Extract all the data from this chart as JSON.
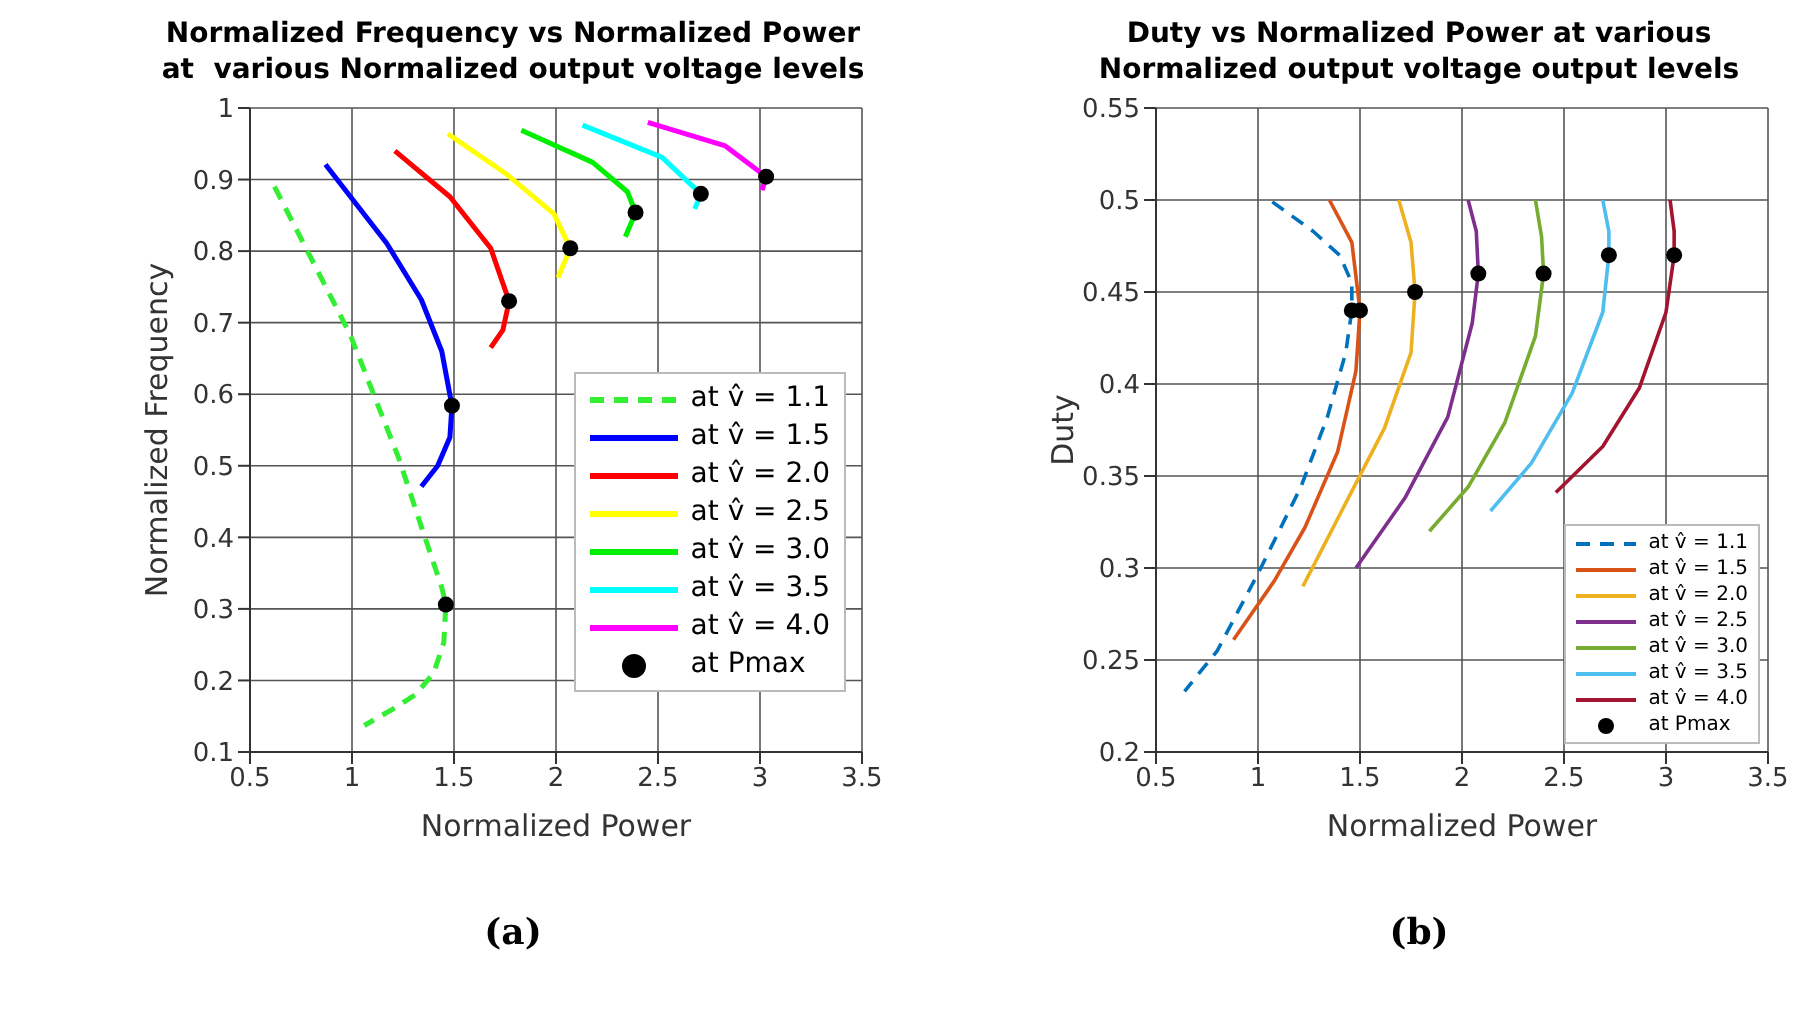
{
  "chart_data": [
    {
      "type": "line",
      "title": "Normalized Frequency vs Normalized Power\nat  various Normalized output voltage levels",
      "xlabel": "Normalized Power",
      "ylabel": "Normalized Frequency",
      "xlim": [
        0.5,
        3.5
      ],
      "xticks": [
        0.5,
        1,
        1.5,
        2,
        2.5,
        3,
        3.5
      ],
      "ylim": [
        0.1,
        1
      ],
      "yticks": [
        0.1,
        0.2,
        0.3,
        0.4,
        0.5,
        0.6,
        0.7,
        0.8,
        0.9,
        1
      ],
      "grid": true,
      "legend": "right",
      "annotations": [
        "(a)"
      ],
      "series": [
        {
          "name": "at v̂ = 1.1",
          "color": "#33ee33",
          "line_style": "dashed",
          "x": [
            0.62,
            0.99,
            1.23,
            1.34,
            1.44,
            1.46,
            1.45,
            1.4,
            1.31,
            1.2,
            1.06
          ],
          "values": [
            0.89,
            0.684,
            0.51,
            0.415,
            0.33,
            0.306,
            0.253,
            0.21,
            0.18,
            0.16,
            0.137
          ]
        },
        {
          "name": "at v̂ = 1.5",
          "color": "#0000ff",
          "x": [
            0.87,
            1.17,
            1.34,
            1.44,
            1.49,
            1.48,
            1.42,
            1.34
          ],
          "values": [
            0.921,
            0.811,
            0.732,
            0.66,
            0.584,
            0.54,
            0.5,
            0.471
          ]
        },
        {
          "name": "at v̂ = 2.0",
          "color": "#ff0000",
          "x": [
            1.21,
            1.48,
            1.68,
            1.77,
            1.74,
            1.68
          ],
          "values": [
            0.94,
            0.876,
            0.804,
            0.73,
            0.69,
            0.665
          ]
        },
        {
          "name": "at v̂ = 2.5",
          "color": "#ffff00",
          "x": [
            1.47,
            1.76,
            1.99,
            2.07,
            2.01
          ],
          "values": [
            0.964,
            0.907,
            0.852,
            0.804,
            0.763
          ]
        },
        {
          "name": "at v̂ = 3.0",
          "color": "#00ee00",
          "x": [
            1.83,
            2.18,
            2.35,
            2.39,
            2.34
          ],
          "values": [
            0.969,
            0.924,
            0.883,
            0.854,
            0.82
          ]
        },
        {
          "name": "at v̂ = 3.5",
          "color": "#00ffff",
          "x": [
            2.13,
            2.52,
            2.71,
            2.68
          ],
          "values": [
            0.976,
            0.931,
            0.88,
            0.859
          ]
        },
        {
          "name": "at v̂ = 4.0",
          "color": "#ff00ff",
          "x": [
            2.45,
            2.83,
            3.03,
            3.01
          ],
          "values": [
            0.98,
            0.947,
            0.904,
            0.885
          ]
        },
        {
          "name": "at Pmax",
          "type": "scatter",
          "color": "#000000",
          "marker": "circle",
          "x": [
            1.46,
            1.49,
            1.77,
            2.07,
            2.39,
            2.71,
            3.03
          ],
          "values": [
            0.306,
            0.584,
            0.73,
            0.804,
            0.854,
            0.88,
            0.904
          ]
        }
      ]
    },
    {
      "type": "line",
      "title": "Duty vs Normalized Power at various\nNormalized output voltage output levels",
      "xlabel": "Normalized Power",
      "ylabel": "Duty",
      "xlim": [
        0.5,
        3.5
      ],
      "xticks": [
        0.5,
        1,
        1.5,
        2,
        2.5,
        3,
        3.5
      ],
      "ylim": [
        0.2,
        0.55
      ],
      "yticks": [
        0.2,
        0.25,
        0.3,
        0.35,
        0.4,
        0.45,
        0.5,
        0.55
      ],
      "grid": true,
      "legend": "bottom right",
      "annotations": [
        "(b)"
      ],
      "series": [
        {
          "name": "at v̂ = 1.1",
          "color": "#0072bd",
          "line_style": "dashed",
          "x": [
            1.07,
            1.27,
            1.4,
            1.46,
            1.46,
            1.43,
            1.34,
            1.21,
            1.0,
            0.8,
            0.64
          ],
          "values": [
            0.499,
            0.483,
            0.47,
            0.455,
            0.44,
            0.417,
            0.382,
            0.344,
            0.297,
            0.255,
            0.233
          ]
        },
        {
          "name": "at v̂ = 1.5",
          "color": "#d95319",
          "x": [
            1.35,
            1.46,
            1.5,
            1.48,
            1.39,
            1.23,
            1.08,
            0.88
          ],
          "values": [
            0.5,
            0.477,
            0.44,
            0.407,
            0.363,
            0.322,
            0.293,
            0.261
          ]
        },
        {
          "name": "at v̂ = 2.0",
          "color": "#edb120",
          "x": [
            1.69,
            1.75,
            1.77,
            1.75,
            1.62,
            1.41,
            1.22
          ],
          "values": [
            0.5,
            0.477,
            0.45,
            0.417,
            0.376,
            0.331,
            0.29
          ]
        },
        {
          "name": "at v̂ = 2.5",
          "color": "#7e2f8e",
          "x": [
            2.03,
            2.07,
            2.08,
            2.05,
            1.93,
            1.72,
            1.48
          ],
          "values": [
            0.5,
            0.483,
            0.46,
            0.433,
            0.382,
            0.338,
            0.3
          ]
        },
        {
          "name": "at v̂ = 3.0",
          "color": "#77ac30",
          "x": [
            2.36,
            2.39,
            2.4,
            2.36,
            2.21,
            2.03,
            1.84
          ],
          "values": [
            0.5,
            0.48,
            0.46,
            0.426,
            0.379,
            0.344,
            0.32
          ]
        },
        {
          "name": "at v̂ = 3.5",
          "color": "#4dbeee",
          "x": [
            2.69,
            2.72,
            2.72,
            2.69,
            2.54,
            2.34,
            2.14
          ],
          "values": [
            0.5,
            0.483,
            0.47,
            0.439,
            0.395,
            0.357,
            0.331
          ]
        },
        {
          "name": "at v̂ = 4.0",
          "color": "#a2142f",
          "x": [
            3.02,
            3.04,
            3.04,
            3.0,
            2.87,
            2.69,
            2.46
          ],
          "values": [
            0.5,
            0.483,
            0.47,
            0.439,
            0.398,
            0.366,
            0.341
          ]
        },
        {
          "name": "at Pmax",
          "type": "scatter",
          "color": "#000000",
          "marker": "circle",
          "x": [
            1.46,
            1.5,
            1.77,
            2.08,
            2.4,
            2.72,
            3.04
          ],
          "values": [
            0.44,
            0.44,
            0.45,
            0.46,
            0.46,
            0.47,
            0.47
          ]
        }
      ]
    }
  ]
}
